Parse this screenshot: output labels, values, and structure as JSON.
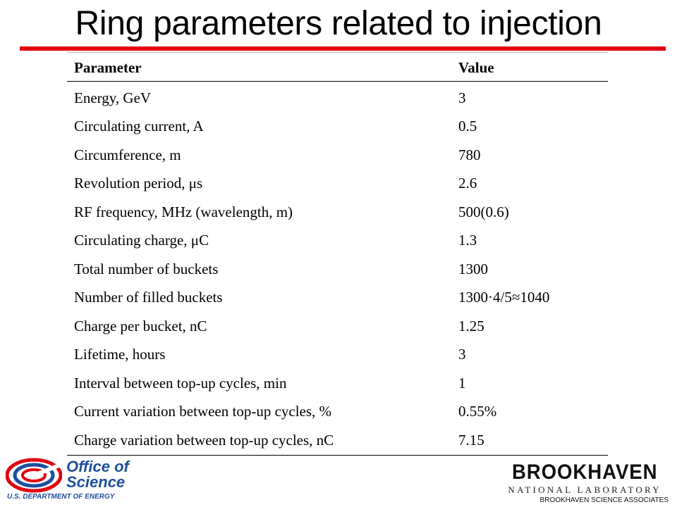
{
  "slide": {
    "title": "Ring parameters related to injection"
  },
  "table": {
    "headers": [
      "Parameter",
      "Value"
    ],
    "rows": [
      {
        "parameter": "Energy, GeV",
        "value": "3"
      },
      {
        "parameter": "Circulating current, A",
        "value": "0.5"
      },
      {
        "parameter": "Circumference, m",
        "value": "780"
      },
      {
        "parameter": "Revolution period, μs",
        "value": "2.6"
      },
      {
        "parameter": "RF frequency, MHz (wavelength, m)",
        "value": "500(0.6)"
      },
      {
        "parameter": "Circulating charge, μC",
        "value": "1.3"
      },
      {
        "parameter": "Total number of buckets",
        "value": "1300"
      },
      {
        "parameter": "Number of filled buckets",
        "value": "1300·4/5≈1040"
      },
      {
        "parameter": "Charge per bucket, nC",
        "value": "1.25"
      },
      {
        "parameter": "Lifetime, hours",
        "value": "3"
      },
      {
        "parameter": "Interval between top-up cycles, min",
        "value": "1"
      },
      {
        "parameter": "Current variation between top-up cycles, %",
        "value": "0.55%"
      },
      {
        "parameter": "Charge variation between top-up cycles, nC",
        "value": "7.15"
      }
    ]
  },
  "footer": {
    "left_logo": {
      "line1": "Office of",
      "line2": "Science",
      "line3": "U.S. DEPARTMENT OF ENERGY",
      "color": "#1d4f9e",
      "accent": "#e3000f"
    },
    "right_logo": {
      "name": "BROOKHAVEN",
      "subtitle": "NATIONAL LABORATORY",
      "associates": "BROOKHAVEN SCIENCE ASSOCIATES"
    }
  },
  "colors": {
    "title_bar": "#e3000f"
  }
}
